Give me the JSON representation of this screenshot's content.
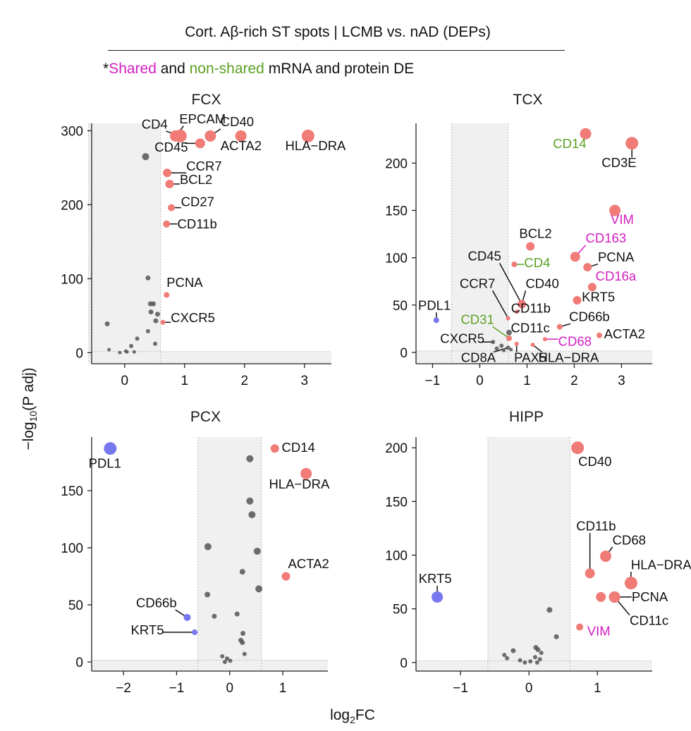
{
  "figure": {
    "title": "Cort. Aβ-rich ST spots | LCMB vs. nAD (DEPs)",
    "subtitle": {
      "prefix": "*",
      "shared": "Shared",
      "mid": " and ",
      "nonshared": "non-shared",
      "suffix": " mRNA and protein DE"
    },
    "ylabel_prefix": "−log",
    "ylabel_sub": "10",
    "ylabel_suffix": "(P adj)",
    "xlabel_prefix": "log",
    "xlabel_sub": "2",
    "xlabel_suffix": "FC",
    "colors": {
      "up": "#f07b77",
      "down": "#7878ee",
      "ns": "#555555",
      "shared": "#d31fbf",
      "nonshared": "#5aa124",
      "label": "#111111",
      "band": "#f0f0f0"
    }
  },
  "chart_data": [
    {
      "type": "scatter",
      "title": "FCX",
      "pill_color": "#e6c3f7",
      "xlim": [
        -0.55,
        3.45
      ],
      "ylim": [
        -15,
        310
      ],
      "xticks": [
        0,
        1,
        2,
        3
      ],
      "yticks": [
        0,
        100,
        200,
        300
      ],
      "band": [
        -0.6,
        0.6
      ],
      "points": [
        {
          "x": 0.93,
          "y": 293,
          "r": 9,
          "c": "up",
          "label": "CD4",
          "lx": 0.5,
          "ly": 303,
          "anchor": "middle"
        },
        {
          "x": 0.85,
          "y": 293,
          "r": 8,
          "c": "up",
          "label": "EPCAM",
          "lx": 1.3,
          "ly": 310,
          "anchor": "middle"
        },
        {
          "x": 1.43,
          "y": 293,
          "r": 8,
          "c": "up",
          "label": "CD40",
          "lx": 1.6,
          "ly": 306,
          "anchor": "start"
        },
        {
          "x": 1.26,
          "y": 283,
          "r": 7,
          "c": "up",
          "label": "CD45",
          "lx": 0.5,
          "ly": 272,
          "anchor": "start"
        },
        {
          "x": 1.94,
          "y": 293,
          "r": 8,
          "c": "up",
          "label": "ACTA2",
          "lx": 1.6,
          "ly": 274,
          "anchor": "start"
        },
        {
          "x": 3.06,
          "y": 293,
          "r": 9,
          "c": "up",
          "label": "HLA−DRA",
          "lx": 2.68,
          "ly": 274,
          "anchor": "start"
        },
        {
          "x": 0.35,
          "y": 265,
          "r": 5,
          "c": "ns"
        },
        {
          "x": 0.71,
          "y": 243,
          "r": 6,
          "c": "up",
          "label": "CCR7",
          "lx": 1.03,
          "ly": 246,
          "anchor": "start"
        },
        {
          "x": 0.75,
          "y": 228,
          "r": 6,
          "c": "up",
          "label": "BCL2",
          "lx": 0.92,
          "ly": 228,
          "anchor": "start"
        },
        {
          "x": 0.78,
          "y": 196,
          "r": 5,
          "c": "up",
          "label": "CD27",
          "lx": 0.94,
          "ly": 198,
          "anchor": "start"
        },
        {
          "x": 0.7,
          "y": 174,
          "r": 5,
          "c": "up",
          "label": "CD11b",
          "lx": 0.88,
          "ly": 168,
          "anchor": "start"
        },
        {
          "x": 0.7,
          "y": 78,
          "r": 4,
          "c": "up",
          "label": "PCNA",
          "lx": 0.7,
          "ly": 89,
          "anchor": "start"
        },
        {
          "x": 0.64,
          "y": 41,
          "r": 3.5,
          "c": "up",
          "label": "CXCR5",
          "lx": 0.77,
          "ly": 41,
          "anchor": "start"
        },
        {
          "x": 0.39,
          "y": 101,
          "r": 3.5,
          "c": "ns"
        },
        {
          "x": 0.43,
          "y": 66,
          "r": 3.5,
          "c": "ns"
        },
        {
          "x": 0.48,
          "y": 66,
          "r": 3.5,
          "c": "ns"
        },
        {
          "x": 0.44,
          "y": 55,
          "r": 3.5,
          "c": "ns"
        },
        {
          "x": 0.55,
          "y": 52,
          "r": 3.5,
          "c": "ns"
        },
        {
          "x": 0.52,
          "y": 43,
          "r": 3.5,
          "c": "ns"
        },
        {
          "x": -0.29,
          "y": 39,
          "r": 3.5,
          "c": "ns"
        },
        {
          "x": 0.39,
          "y": 29,
          "r": 3,
          "c": "ns"
        },
        {
          "x": 0.21,
          "y": 19,
          "r": 3,
          "c": "ns"
        },
        {
          "x": 0.51,
          "y": 12,
          "r": 3,
          "c": "ns"
        },
        {
          "x": 0.11,
          "y": 9,
          "r": 3,
          "c": "ns"
        },
        {
          "x": -0.26,
          "y": 4,
          "r": 2.5,
          "c": "ns"
        },
        {
          "x": -0.08,
          "y": 0,
          "r": 2.5,
          "c": "ns"
        },
        {
          "x": 0.02,
          "y": 2,
          "r": 2.5,
          "c": "ns"
        },
        {
          "x": 0.04,
          "y": 1,
          "r": 2.5,
          "c": "ns"
        },
        {
          "x": 0.16,
          "y": 1,
          "r": 2.5,
          "c": "ns"
        }
      ]
    },
    {
      "type": "scatter",
      "title": "TCX",
      "pill_color": "#abeedd",
      "xlim": [
        -1.35,
        3.65
      ],
      "ylim": [
        -12,
        242
      ],
      "xticks": [
        -1,
        0,
        1,
        2,
        3
      ],
      "yticks": [
        0,
        50,
        100,
        150,
        200
      ],
      "band": [
        -0.6,
        0.6
      ],
      "points": [
        {
          "x": 2.24,
          "y": 231,
          "r": 8,
          "c": "up",
          "label": "CD14",
          "lc": "nonshared",
          "lx": 1.55,
          "ly": 216,
          "anchor": "start"
        },
        {
          "x": 3.22,
          "y": 221,
          "r": 9,
          "c": "up",
          "label": "CD3E",
          "lx": 2.58,
          "ly": 196,
          "anchor": "start"
        },
        {
          "x": 2.86,
          "y": 150,
          "r": 8,
          "c": "up",
          "label": "VIM",
          "lc": "shared",
          "lx": 2.77,
          "ly": 136,
          "anchor": "start"
        },
        {
          "x": 1.07,
          "y": 112,
          "r": 6,
          "c": "up",
          "label": "BCL2",
          "lx": 1.18,
          "ly": 121,
          "anchor": "middle"
        },
        {
          "x": 2.02,
          "y": 101,
          "r": 7,
          "c": "up",
          "label": "CD163",
          "lc": "shared",
          "lx": 2.24,
          "ly": 116,
          "anchor": "start",
          "line_color": "shared"
        },
        {
          "x": 2.28,
          "y": 90,
          "r": 6,
          "c": "up",
          "label": "PCNA",
          "lx": 2.5,
          "ly": 96,
          "anchor": "start"
        },
        {
          "x": 2.38,
          "y": 69,
          "r": 6,
          "c": "up",
          "label": "CD16a",
          "lc": "shared",
          "lx": 2.45,
          "ly": 76,
          "anchor": "start"
        },
        {
          "x": 2.06,
          "y": 55,
          "r": 6,
          "c": "up",
          "label": "KRT5",
          "lx": 2.16,
          "ly": 54,
          "anchor": "start"
        },
        {
          "x": 0.73,
          "y": 93,
          "r": 4,
          "c": "up",
          "label": "CD4",
          "lc": "nonshared",
          "lx": 0.94,
          "ly": 90,
          "anchor": "start",
          "line_color": "nonshared"
        },
        {
          "x": 0.89,
          "y": 51,
          "r": 6,
          "c": "up",
          "label": "CD45",
          "lx": 0.1,
          "ly": 97,
          "anchor": "middle"
        },
        {
          "x": 0.89,
          "y": 51,
          "r": 6,
          "c": "up",
          "label": "CD40",
          "lx": 0.97,
          "ly": 68,
          "anchor": "start"
        },
        {
          "x": 0.6,
          "y": 36,
          "r": 3,
          "c": "up",
          "label": "CCR7",
          "lx": -0.05,
          "ly": 68,
          "anchor": "middle"
        },
        {
          "x": 0.79,
          "y": 43,
          "r": 3,
          "c": "up",
          "label": "CD11b",
          "lx": 1.08,
          "ly": 42,
          "anchor": "middle"
        },
        {
          "x": 1.69,
          "y": 27,
          "r": 4,
          "c": "up",
          "label": "CD66b",
          "lx": 2.32,
          "ly": 33,
          "anchor": "middle"
        },
        {
          "x": 2.53,
          "y": 18,
          "r": 4,
          "c": "up",
          "label": "ACTA2",
          "lx": 2.63,
          "ly": 15,
          "anchor": "start"
        },
        {
          "x": 1.38,
          "y": 14,
          "r": 3,
          "c": "up",
          "label": "CD68",
          "lc": "shared",
          "lx": 1.66,
          "ly": 7,
          "anchor": "start",
          "line_color": "shared"
        },
        {
          "x": 1.12,
          "y": 8,
          "r": 3,
          "c": "up",
          "label": "HLA−DRA",
          "lx": 1.88,
          "ly": -10,
          "anchor": "middle"
        },
        {
          "x": 0.62,
          "y": 21,
          "r": 4,
          "c": "ns",
          "label": "CD11c",
          "lx": 1.07,
          "ly": 21,
          "anchor": "middle"
        },
        {
          "x": 0.62,
          "y": 15,
          "r": 4,
          "c": "up",
          "label": "CD31",
          "lc": "nonshared",
          "lx": -0.05,
          "ly": 30,
          "anchor": "middle",
          "line_color": "nonshared"
        },
        {
          "x": 0.28,
          "y": 11,
          "r": 3,
          "c": "ns",
          "label": "CXCR5",
          "lx": -0.37,
          "ly": 10,
          "anchor": "middle"
        },
        {
          "x": 0.6,
          "y": 5,
          "r": 3,
          "c": "ns",
          "label": "CD8A",
          "lx": -0.03,
          "ly": -10,
          "anchor": "middle"
        },
        {
          "x": 0.78,
          "y": 9,
          "r": 3,
          "c": "up",
          "label": "PAX5",
          "lx": 1.07,
          "ly": -10,
          "anchor": "middle"
        },
        {
          "x": -0.92,
          "y": 34,
          "r": 4,
          "c": "down",
          "label": "PDL1",
          "lx": -0.96,
          "ly": 45,
          "anchor": "middle"
        },
        {
          "x": 0.46,
          "y": 7,
          "r": 3,
          "c": "ns"
        },
        {
          "x": 0.36,
          "y": 4,
          "r": 3,
          "c": "ns"
        },
        {
          "x": 0.51,
          "y": 2,
          "r": 2.5,
          "c": "ns"
        },
        {
          "x": 0.66,
          "y": 3,
          "r": 2.5,
          "c": "ns"
        }
      ]
    },
    {
      "type": "scatter",
      "title": "PCX",
      "pill_color": "#f395c8",
      "xlim": [
        -2.6,
        1.85
      ],
      "ylim": [
        -8,
        197
      ],
      "xticks": [
        -2,
        -1,
        0,
        1
      ],
      "yticks": [
        0,
        50,
        100,
        150
      ],
      "band": [
        -0.6,
        0.6
      ],
      "points": [
        {
          "x": -2.25,
          "y": 187,
          "r": 9,
          "c": "down",
          "label": "PDL1",
          "lx": -2.35,
          "ly": 170,
          "anchor": "middle"
        },
        {
          "x": 0.85,
          "y": 187,
          "r": 6,
          "c": "up",
          "label": "CD14",
          "lx": 0.98,
          "ly": 184,
          "anchor": "start"
        },
        {
          "x": 1.44,
          "y": 165,
          "r": 8,
          "c": "up",
          "label": "HLA−DRA",
          "lx": 0.74,
          "ly": 152,
          "anchor": "start"
        },
        {
          "x": 1.06,
          "y": 75,
          "r": 6,
          "c": "up",
          "label": "ACTA2",
          "lx": 1.1,
          "ly": 82,
          "anchor": "start"
        },
        {
          "x": -0.8,
          "y": 39,
          "r": 5,
          "c": "down",
          "label": "CD66b",
          "lx": -1.38,
          "ly": 48,
          "anchor": "middle"
        },
        {
          "x": -0.66,
          "y": 26,
          "r": 4,
          "c": "down",
          "label": "KRT5",
          "lx": -1.55,
          "ly": 24,
          "anchor": "middle"
        },
        {
          "x": 0.38,
          "y": 178,
          "r": 5,
          "c": "ns"
        },
        {
          "x": 0.38,
          "y": 141,
          "r": 5,
          "c": "ns"
        },
        {
          "x": 0.42,
          "y": 129,
          "r": 5,
          "c": "ns"
        },
        {
          "x": -0.41,
          "y": 101,
          "r": 5,
          "c": "ns"
        },
        {
          "x": 0.52,
          "y": 97,
          "r": 5,
          "c": "ns"
        },
        {
          "x": 0.24,
          "y": 79,
          "r": 4,
          "c": "ns"
        },
        {
          "x": 0.55,
          "y": 64,
          "r": 5,
          "c": "ns"
        },
        {
          "x": -0.42,
          "y": 59,
          "r": 4,
          "c": "ns"
        },
        {
          "x": 0.14,
          "y": 42,
          "r": 3.5,
          "c": "ns"
        },
        {
          "x": -0.29,
          "y": 40,
          "r": 3.5,
          "c": "ns"
        },
        {
          "x": 0.25,
          "y": 25,
          "r": 3.5,
          "c": "ns"
        },
        {
          "x": 0.21,
          "y": 19,
          "r": 3.5,
          "c": "ns"
        },
        {
          "x": 0.24,
          "y": 17,
          "r": 3.5,
          "c": "ns"
        },
        {
          "x": 0.28,
          "y": 7,
          "r": 3,
          "c": "ns"
        },
        {
          "x": -0.14,
          "y": 5,
          "r": 3,
          "c": "ns"
        },
        {
          "x": -0.05,
          "y": 3,
          "r": 3,
          "c": "ns"
        },
        {
          "x": 0.01,
          "y": 1,
          "r": 3,
          "c": "ns"
        },
        {
          "x": -0.09,
          "y": 0,
          "r": 3,
          "c": "ns"
        }
      ]
    },
    {
      "type": "scatter",
      "title": "HIPP",
      "pill_color": "#f9d9a7",
      "xlim": [
        -1.65,
        1.8
      ],
      "ylim": [
        -8,
        210
      ],
      "xticks": [
        -1,
        0,
        1
      ],
      "yticks": [
        0,
        50,
        100,
        150,
        200
      ],
      "band": [
        -0.6,
        0.6
      ],
      "points": [
        {
          "x": 0.71,
          "y": 200,
          "r": 9,
          "c": "up",
          "label": "CD40",
          "lx": 0.72,
          "ly": 183,
          "anchor": "start"
        },
        {
          "x": 0.89,
          "y": 83,
          "r": 7,
          "c": "up",
          "label": "CD11b",
          "lx": 0.98,
          "ly": 123,
          "anchor": "middle"
        },
        {
          "x": 1.12,
          "y": 99,
          "r": 8,
          "c": "up",
          "label": "CD68",
          "lx": 1.22,
          "ly": 110,
          "anchor": "start"
        },
        {
          "x": 1.49,
          "y": 74,
          "r": 9,
          "c": "up",
          "label": "HLA−DRA",
          "lx": 1.49,
          "ly": 87,
          "anchor": "start"
        },
        {
          "x": 1.05,
          "y": 61,
          "r": 7,
          "c": "up"
        },
        {
          "x": 1.25,
          "y": 61,
          "r": 8,
          "c": "up",
          "label": "PCNA",
          "lx": 1.5,
          "ly": 57,
          "anchor": "start"
        },
        {
          "x": 1.25,
          "y": 61,
          "r": 8,
          "c": "up",
          "label": "CD11c",
          "lx": 1.47,
          "ly": 35,
          "anchor": "start"
        },
        {
          "x": 0.74,
          "y": 33,
          "r": 5,
          "c": "up",
          "label": "VIM",
          "lc": "shared",
          "lx": 0.85,
          "ly": 25,
          "anchor": "start",
          "line_color": "shared"
        },
        {
          "x": -1.34,
          "y": 61,
          "r": 8,
          "c": "down",
          "label": "KRT5",
          "lx": -1.37,
          "ly": 74,
          "anchor": "middle"
        },
        {
          "x": 0.3,
          "y": 49,
          "r": 4,
          "c": "ns"
        },
        {
          "x": 0.4,
          "y": 24,
          "r": 3.5,
          "c": "ns"
        },
        {
          "x": 0.1,
          "y": 14,
          "r": 3.5,
          "c": "ns"
        },
        {
          "x": 0.13,
          "y": 12,
          "r": 3.5,
          "c": "ns"
        },
        {
          "x": -0.23,
          "y": 11,
          "r": 3.5,
          "c": "ns"
        },
        {
          "x": 0.18,
          "y": 9,
          "r": 3,
          "c": "ns"
        },
        {
          "x": -0.36,
          "y": 7,
          "r": 3,
          "c": "ns"
        },
        {
          "x": 0.09,
          "y": 5,
          "r": 3,
          "c": "ns"
        },
        {
          "x": -0.32,
          "y": 4,
          "r": 3,
          "c": "ns"
        },
        {
          "x": 0.16,
          "y": 3,
          "r": 3,
          "c": "ns"
        },
        {
          "x": -0.13,
          "y": 2,
          "r": 3,
          "c": "ns"
        },
        {
          "x": 0.02,
          "y": 1,
          "r": 3,
          "c": "ns"
        },
        {
          "x": -0.06,
          "y": 0,
          "r": 3,
          "c": "ns"
        },
        {
          "x": 0.12,
          "y": 0,
          "r": 3,
          "c": "ns"
        }
      ]
    }
  ]
}
